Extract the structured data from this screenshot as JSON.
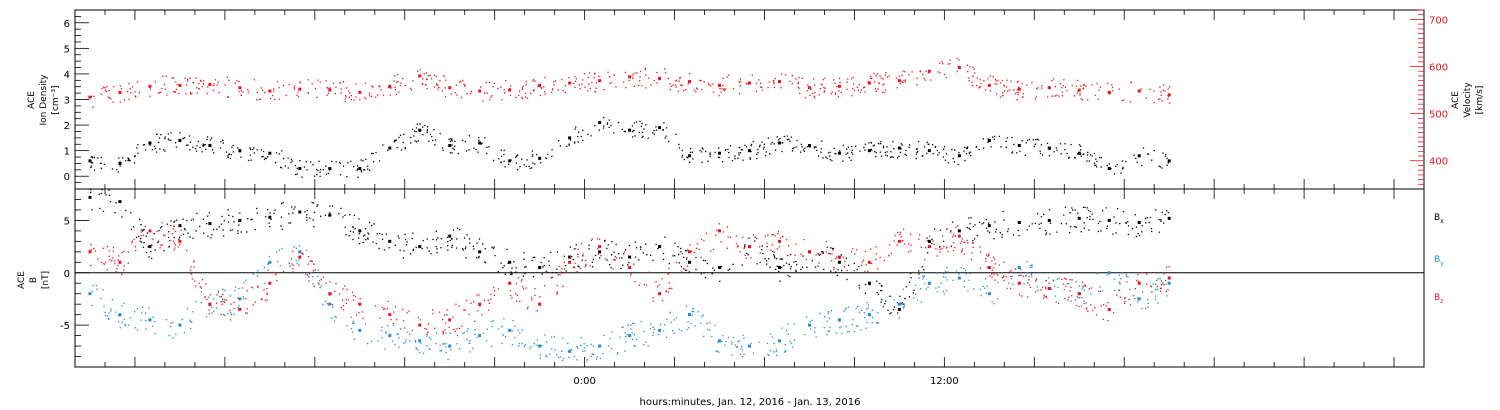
{
  "colors": {
    "black": "#000000",
    "red": "#e8141c",
    "blue": "#1f8ad6"
  },
  "chart_data": [
    {
      "type": "scatter",
      "panel": "top",
      "ylabel_left": [
        "ACE",
        "Ion Density",
        "[cm⁻³]"
      ],
      "ylabel_right": [
        "ACE",
        "Velocity",
        "[km/s]"
      ],
      "ylim_left": [
        -0.5,
        6.5
      ],
      "yticks_left": [
        0,
        1,
        2,
        3,
        4,
        5,
        6
      ],
      "ylim_right": [
        340,
        720
      ],
      "yticks_right": [
        400,
        500,
        600,
        700
      ],
      "x_unit": "hours relative to 00:00 Jan. 13, 2016",
      "xlim": [
        -17,
        28
      ],
      "series": [
        {
          "color": "black",
          "axis": "left",
          "x": [
            -16.5,
            -15.5,
            -14.5,
            -13.5,
            -12.5,
            -11.5,
            -10.5,
            -9.5,
            -8.5,
            -7.5,
            -6.5,
            -5.5,
            -4.5,
            -3.5,
            -2.5,
            -1.5,
            -0.5,
            0.5,
            1.5,
            2.5,
            3.5,
            4.5,
            5.5,
            6.5,
            7.5,
            8.5,
            9.5,
            10.5,
            11.5,
            12.5,
            13.5,
            14.5,
            15.5,
            16.5,
            17.5,
            18.5,
            19.5
          ],
          "values": [
            0.6,
            0.5,
            1.3,
            1.4,
            1.2,
            1.0,
            0.9,
            0.3,
            0.3,
            0.3,
            1.1,
            1.8,
            1.2,
            1.3,
            0.6,
            0.7,
            1.5,
            2.1,
            1.8,
            1.9,
            0.8,
            0.9,
            1.0,
            1.3,
            1.2,
            0.9,
            1.0,
            1.1,
            1.0,
            0.8,
            1.4,
            1.2,
            1.1,
            0.9,
            0.3,
            0.8,
            0.6
          ]
        },
        {
          "color": "red",
          "axis": "right",
          "x": [
            -16.5,
            -15.5,
            -14.5,
            -13.5,
            -12.5,
            -11.5,
            -10.5,
            -9.5,
            -8.5,
            -7.5,
            -6.5,
            -5.5,
            -4.5,
            -3.5,
            -2.5,
            -1.5,
            -0.5,
            0.5,
            1.5,
            2.5,
            3.5,
            4.5,
            5.5,
            6.5,
            7.5,
            8.5,
            9.5,
            10.5,
            11.5,
            12.5,
            13.5,
            14.5,
            15.5,
            16.5,
            17.5,
            18.5,
            19.5
          ],
          "values": [
            535,
            545,
            558,
            560,
            562,
            555,
            548,
            552,
            550,
            545,
            558,
            580,
            555,
            548,
            550,
            560,
            565,
            570,
            578,
            575,
            568,
            560,
            565,
            568,
            555,
            558,
            565,
            570,
            590,
            598,
            560,
            552,
            555,
            550,
            545,
            548,
            540
          ]
        }
      ]
    },
    {
      "type": "scatter",
      "panel": "bottom",
      "ylabel_left": [
        "ACE",
        "B",
        "[nT]"
      ],
      "ylim": [
        -9,
        8
      ],
      "yticks": [
        -5,
        0,
        5
      ],
      "zero_line": true,
      "x_unit": "hours relative to 00:00 Jan. 13, 2016",
      "xlim": [
        -17,
        28
      ],
      "series": [
        {
          "name": "Bx",
          "color": "black",
          "x": [
            -16.5,
            -15.5,
            -14.5,
            -13.5,
            -12.5,
            -11.5,
            -10.5,
            -9.5,
            -8.5,
            -7.5,
            -6.5,
            -5.5,
            -4.5,
            -3.5,
            -2.5,
            -1.5,
            -0.5,
            0.5,
            1.5,
            2.5,
            3.5,
            4.5,
            5.5,
            6.5,
            7.5,
            8.5,
            9.5,
            10.5,
            11.5,
            12.5,
            13.5,
            14.5,
            15.5,
            16.5,
            17.5,
            18.5,
            19.5
          ],
          "values": [
            7.2,
            6.8,
            2.5,
            4.5,
            4.7,
            5.0,
            5.3,
            5.8,
            5.5,
            4.0,
            3.0,
            2.5,
            3.5,
            2.0,
            1.0,
            0.5,
            1.5,
            2.0,
            1.5,
            2.5,
            1.0,
            0.5,
            2.5,
            0.5,
            2.0,
            1.0,
            -1.0,
            -3.5,
            3.0,
            4.0,
            4.5,
            4.8,
            5.0,
            5.2,
            5.0,
            4.8,
            5.2
          ]
        },
        {
          "name": "By",
          "color": "blue",
          "x": [
            -16.5,
            -15.5,
            -14.5,
            -13.5,
            -12.5,
            -11.5,
            -10.5,
            -9.5,
            -8.5,
            -7.5,
            -6.5,
            -5.5,
            -4.5,
            -3.5,
            -2.5,
            -1.5,
            -0.5,
            0.5,
            1.5,
            2.5,
            3.5,
            4.5,
            5.5,
            6.5,
            7.5,
            8.5,
            9.5,
            10.5,
            11.5,
            12.5,
            13.5,
            14.5,
            15.5,
            16.5,
            17.5,
            18.5,
            19.5
          ],
          "values": [
            -2.0,
            -4.0,
            -4.5,
            -5.0,
            -3.0,
            -2.5,
            1.0,
            2.0,
            -3.0,
            -5.5,
            -6.0,
            -6.5,
            -7.0,
            -6.0,
            -5.5,
            -7.0,
            -7.5,
            -7.0,
            -6.0,
            -5.5,
            -4.0,
            -6.5,
            -7.0,
            -6.5,
            -5.0,
            -4.5,
            -4.0,
            -3.0,
            -1.0,
            -0.5,
            -2.0,
            0.5,
            -1.5,
            -2.0,
            0.0,
            -2.5,
            -1.0
          ]
        },
        {
          "name": "Bz",
          "color": "red",
          "x": [
            -16.5,
            -15.5,
            -14.5,
            -13.5,
            -12.5,
            -11.5,
            -10.5,
            -9.5,
            -8.5,
            -7.5,
            -6.5,
            -5.5,
            -4.5,
            -3.5,
            -2.5,
            -1.5,
            -0.5,
            0.5,
            1.5,
            2.5,
            3.5,
            4.5,
            5.5,
            6.5,
            7.5,
            8.5,
            9.5,
            10.5,
            11.5,
            12.5,
            13.5,
            14.5,
            15.5,
            16.5,
            17.5,
            18.5,
            19.5
          ],
          "values": [
            2.0,
            1.0,
            4.0,
            3.0,
            -3.0,
            -3.5,
            -1.0,
            1.5,
            -2.0,
            -3.0,
            -4.0,
            -5.0,
            -4.5,
            -3.0,
            -1.0,
            -3.0,
            1.0,
            2.5,
            0.5,
            -2.0,
            2.0,
            4.0,
            2.5,
            3.0,
            2.0,
            1.5,
            1.0,
            3.0,
            2.5,
            3.5,
            0.5,
            -1.0,
            -1.5,
            -2.0,
            -3.5,
            -1.0,
            -0.5
          ]
        }
      ],
      "series_labels": [
        "B",
        "B",
        "B"
      ],
      "series_label_subscripts": [
        "x",
        "y",
        "z"
      ]
    }
  ],
  "x_axis": {
    "tick_labels": [
      "0:00",
      "12:00"
    ],
    "tick_label_hours": [
      0,
      12
    ],
    "xlabel": "hours:minutes, Jan. 12, 2016 - Jan. 13, 2016"
  }
}
